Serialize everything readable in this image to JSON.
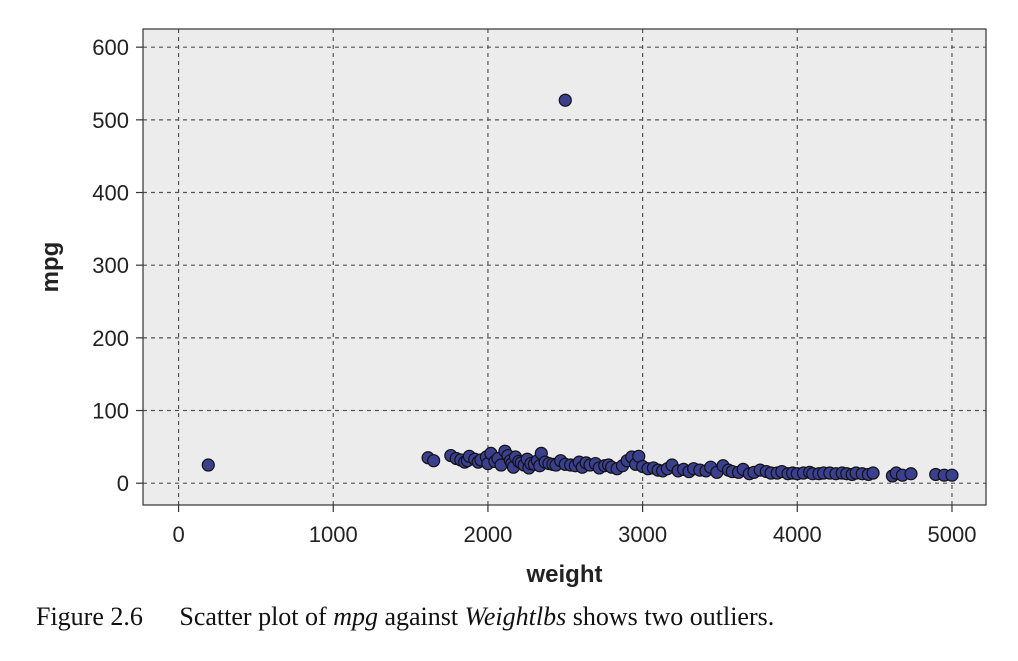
{
  "chart_data": {
    "type": "scatter",
    "title": "",
    "xlabel": "weight",
    "ylabel": "mpg",
    "xlim": [
      -230,
      5220
    ],
    "ylim": [
      -30,
      625
    ],
    "xticks": [
      0,
      1000,
      2000,
      3000,
      4000,
      5000
    ],
    "yticks": [
      0,
      100,
      200,
      300,
      400,
      500,
      600
    ],
    "grid": true,
    "grid_style": "dashed",
    "background": "#ececec",
    "point_fill": "#3a3f8f",
    "point_stroke": "#111111",
    "series": [
      {
        "points": [
          [
            192,
            25
          ],
          [
            2500,
            527
          ],
          [
            1613,
            35
          ],
          [
            1649,
            31
          ],
          [
            1760,
            38
          ],
          [
            1795,
            34
          ],
          [
            1825,
            32
          ],
          [
            1850,
            29
          ],
          [
            1867,
            31
          ],
          [
            1880,
            37
          ],
          [
            1915,
            33
          ],
          [
            1937,
            29
          ],
          [
            1955,
            32
          ],
          [
            1990,
            36
          ],
          [
            2000,
            27
          ],
          [
            2019,
            41
          ],
          [
            2045,
            30
          ],
          [
            2065,
            34
          ],
          [
            2085,
            25
          ],
          [
            2110,
            44
          ],
          [
            2130,
            38
          ],
          [
            2145,
            31
          ],
          [
            2155,
            27
          ],
          [
            2165,
            22
          ],
          [
            2178,
            36
          ],
          [
            2200,
            30
          ],
          [
            2215,
            28
          ],
          [
            2234,
            25
          ],
          [
            2254,
            33
          ],
          [
            2265,
            21
          ],
          [
            2278,
            27
          ],
          [
            2300,
            26
          ],
          [
            2320,
            31
          ],
          [
            2335,
            24
          ],
          [
            2345,
            41
          ],
          [
            2370,
            29
          ],
          [
            2395,
            27
          ],
          [
            2420,
            26
          ],
          [
            2440,
            25
          ],
          [
            2470,
            31
          ],
          [
            2500,
            26
          ],
          [
            2535,
            25
          ],
          [
            2565,
            24
          ],
          [
            2590,
            29
          ],
          [
            2610,
            22
          ],
          [
            2635,
            28
          ],
          [
            2660,
            25
          ],
          [
            2695,
            27
          ],
          [
            2720,
            21
          ],
          [
            2755,
            24
          ],
          [
            2780,
            25
          ],
          [
            2800,
            22
          ],
          [
            2835,
            20
          ],
          [
            2870,
            24
          ],
          [
            2900,
            31
          ],
          [
            2930,
            36
          ],
          [
            2955,
            26
          ],
          [
            2975,
            37
          ],
          [
            3000,
            23
          ],
          [
            3035,
            20
          ],
          [
            3070,
            21
          ],
          [
            3100,
            18
          ],
          [
            3130,
            17
          ],
          [
            3160,
            20
          ],
          [
            3190,
            25
          ],
          [
            3230,
            17
          ],
          [
            3265,
            19
          ],
          [
            3300,
            16
          ],
          [
            3330,
            20
          ],
          [
            3370,
            18
          ],
          [
            3410,
            17
          ],
          [
            3440,
            22
          ],
          [
            3480,
            15
          ],
          [
            3520,
            24
          ],
          [
            3555,
            18
          ],
          [
            3580,
            16
          ],
          [
            3620,
            15
          ],
          [
            3650,
            19
          ],
          [
            3690,
            13
          ],
          [
            3720,
            15
          ],
          [
            3760,
            18
          ],
          [
            3800,
            16
          ],
          [
            3830,
            14
          ],
          [
            3870,
            14
          ],
          [
            3900,
            16
          ],
          [
            3940,
            13
          ],
          [
            3970,
            14
          ],
          [
            4000,
            13
          ],
          [
            4040,
            14
          ],
          [
            4080,
            15
          ],
          [
            4100,
            13
          ],
          [
            4140,
            13
          ],
          [
            4170,
            14
          ],
          [
            4210,
            14
          ],
          [
            4250,
            13
          ],
          [
            4290,
            14
          ],
          [
            4320,
            13
          ],
          [
            4355,
            12
          ],
          [
            4380,
            14
          ],
          [
            4420,
            13
          ],
          [
            4460,
            12
          ],
          [
            4490,
            14
          ],
          [
            4615,
            10
          ],
          [
            4640,
            14
          ],
          [
            4680,
            11
          ],
          [
            4735,
            13
          ],
          [
            4895,
            12
          ],
          [
            4950,
            11
          ],
          [
            5000,
            11
          ]
        ]
      }
    ]
  },
  "caption": {
    "figure_number": "Figure 2.6",
    "text_part1": "Scatter plot of",
    "em1": "mpg",
    "text_part2": "against",
    "em2": "Weightlbs",
    "text_part3": "shows two outliers."
  }
}
